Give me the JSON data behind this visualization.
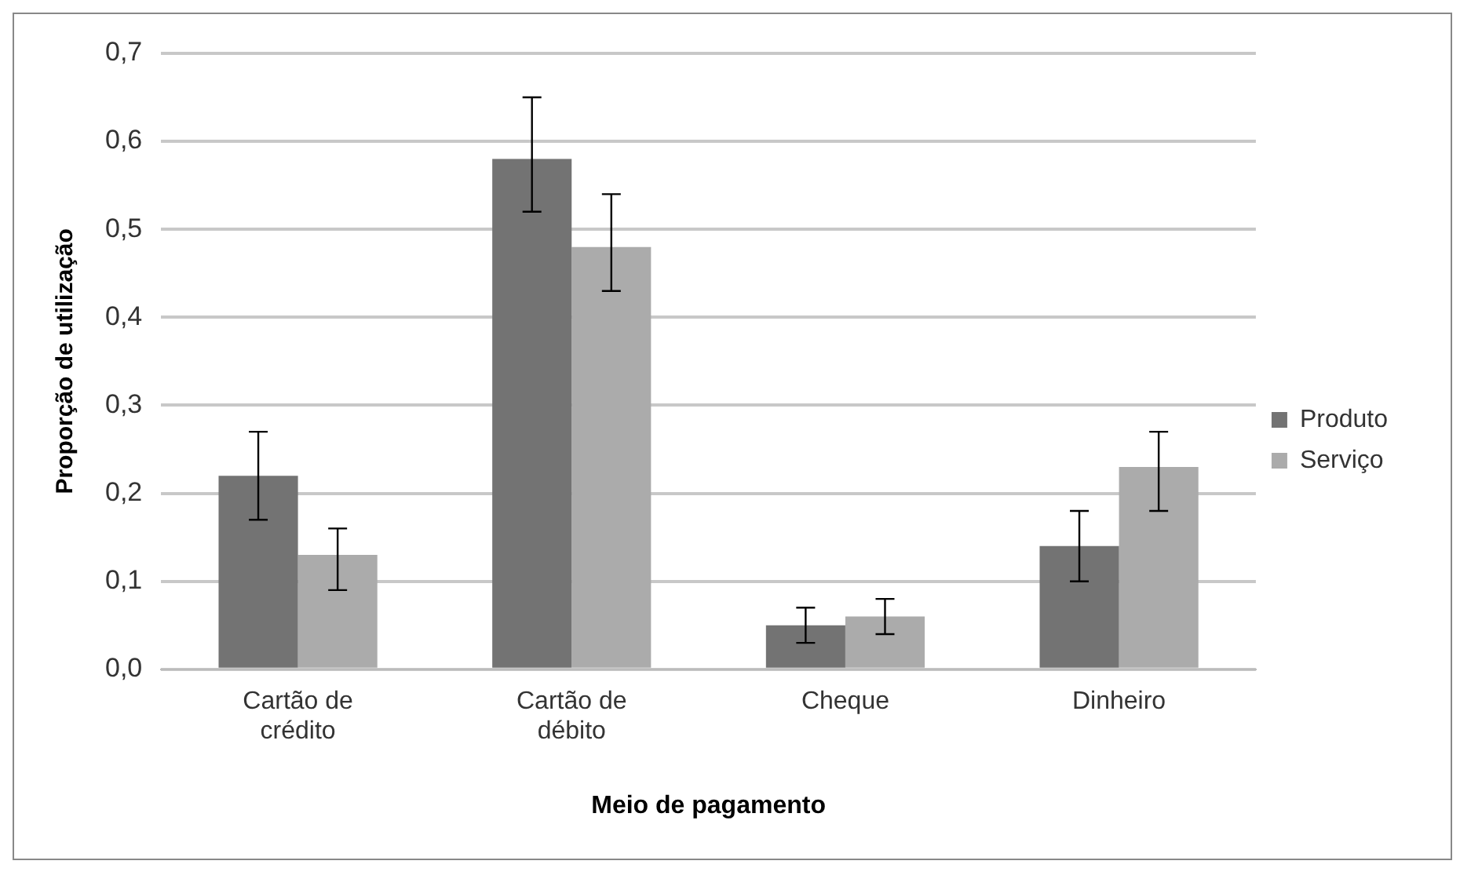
{
  "chart_data": {
    "type": "bar",
    "xlabel": "Meio de pagamento",
    "ylabel": "Proporção de utilização",
    "categories": [
      "Cartão de crédito",
      "Cartão de débito",
      "Cheque",
      "Dinheiro"
    ],
    "series": [
      {
        "name": "Produto",
        "color": "#737373",
        "values": [
          0.22,
          0.58,
          0.05,
          0.14
        ],
        "errors": [
          [
            0.17,
            0.27
          ],
          [
            0.52,
            0.65
          ],
          [
            0.03,
            0.07
          ],
          [
            0.1,
            0.18
          ]
        ]
      },
      {
        "name": "Serviço",
        "color": "#ababab",
        "values": [
          0.13,
          0.48,
          0.06,
          0.23
        ],
        "errors": [
          [
            0.09,
            0.16
          ],
          [
            0.43,
            0.54
          ],
          [
            0.04,
            0.08
          ],
          [
            0.18,
            0.27
          ]
        ]
      }
    ],
    "ylim": [
      0,
      0.7
    ],
    "yticks": [
      {
        "value": 0,
        "label": "0,0"
      },
      {
        "value": 0.1,
        "label": "0,1"
      },
      {
        "value": 0.2,
        "label": "0,2"
      },
      {
        "value": 0.3,
        "label": "0,3"
      },
      {
        "value": 0.4,
        "label": "0,4"
      },
      {
        "value": 0.5,
        "label": "0,5"
      },
      {
        "value": 0.6,
        "label": "0,6"
      },
      {
        "value": 0.7,
        "label": "0,7"
      }
    ],
    "grid": "y",
    "legend": "right"
  }
}
